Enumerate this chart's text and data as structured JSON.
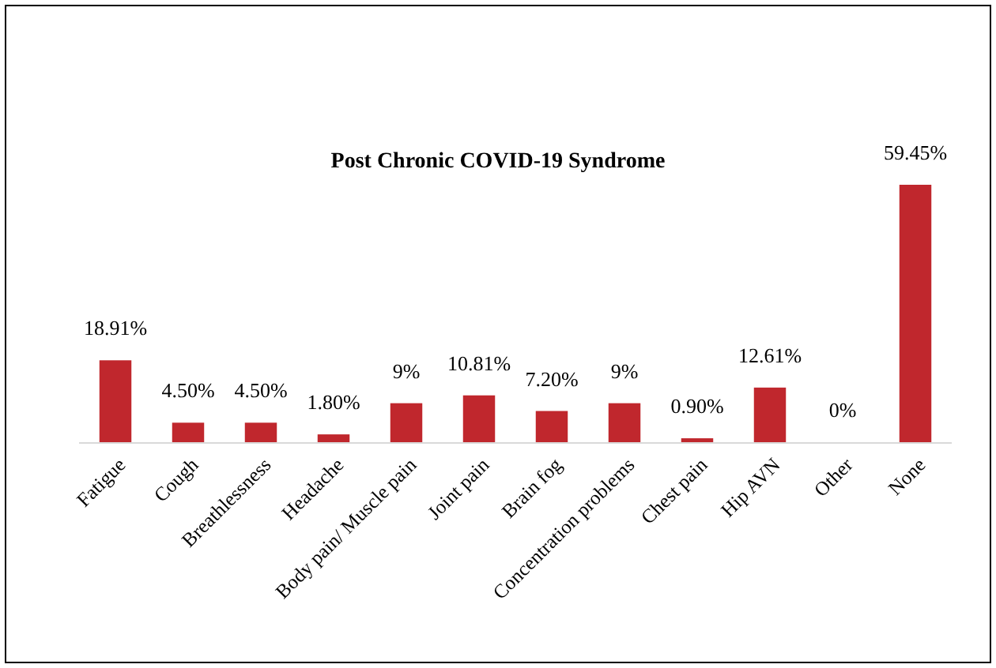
{
  "chart_data": {
    "type": "bar",
    "title": "Post Chronic COVID-19 Syndrome",
    "categories": [
      "Fatigue",
      "Cough",
      "Breathlessness",
      "Headache",
      "Body pain/ Muscle pain",
      "Joint pain",
      "Brain fog",
      "Concentration problems",
      "Chest pain",
      "Hip AVN",
      "Other",
      "None"
    ],
    "values": [
      18.91,
      4.5,
      4.5,
      1.8,
      9,
      10.81,
      7.2,
      9,
      0.9,
      12.61,
      0,
      59.45
    ],
    "value_labels": [
      "18.91%",
      "4.50%",
      "4.50%",
      "1.80%",
      "9%",
      "10.81%",
      "7.20%",
      "9%",
      "0.90%",
      "12.61%",
      "0%",
      "59.45%"
    ],
    "color": "#c0272d"
  }
}
